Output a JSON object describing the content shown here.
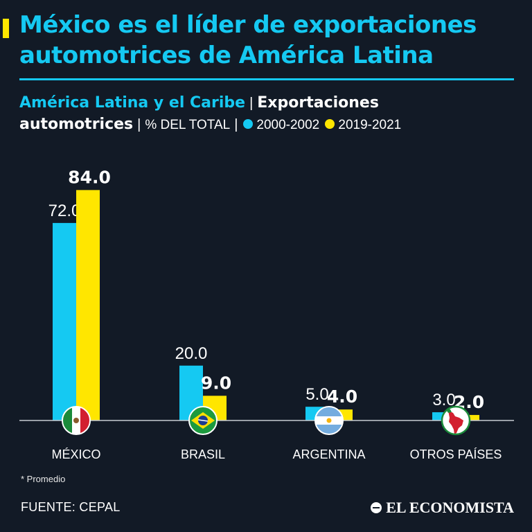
{
  "header": {
    "title": "México es el líder de exportaciones automotrices de América Latina",
    "subtitle_region": "América Latina y el Caribe",
    "subtitle_metric": "Exportaciones automotrices",
    "subtitle_unit": "% DEL TOTAL",
    "accent_color": "#ffe600"
  },
  "legend": [
    {
      "label": "2000-2002",
      "color": "#15c9f2"
    },
    {
      "label": "2019-2021",
      "color": "#ffe600"
    }
  ],
  "chart_data": {
    "type": "bar",
    "title": "México es el líder de exportaciones automotrices de América Latina",
    "ylabel": "% DEL TOTAL",
    "xlabel": "",
    "ylim": [
      0,
      100
    ],
    "categories": [
      "MÉXICO",
      "BRASIL",
      "ARGENTINA",
      "OTROS PAÍSES"
    ],
    "category_icons": [
      "mexico-flag-icon",
      "brazil-flag-icon",
      "argentina-flag-icon",
      "latin-america-map-icon"
    ],
    "series": [
      {
        "name": "2000-2002",
        "color": "#15c9f2",
        "values": [
          72.0,
          20.0,
          5.0,
          3.0
        ],
        "labels": [
          "72.0",
          "20.0",
          "5.0",
          "3.0"
        ]
      },
      {
        "name": "2019-2021",
        "color": "#ffe600",
        "values": [
          84.0,
          9.0,
          4.0,
          2.0
        ],
        "labels": [
          "84.0",
          "9.0",
          "4.0",
          "2.0"
        ]
      }
    ]
  },
  "footer": {
    "note": "* Promedio",
    "source": "FUENTE: CEPAL",
    "brand": "EL ECONOMISTA"
  }
}
